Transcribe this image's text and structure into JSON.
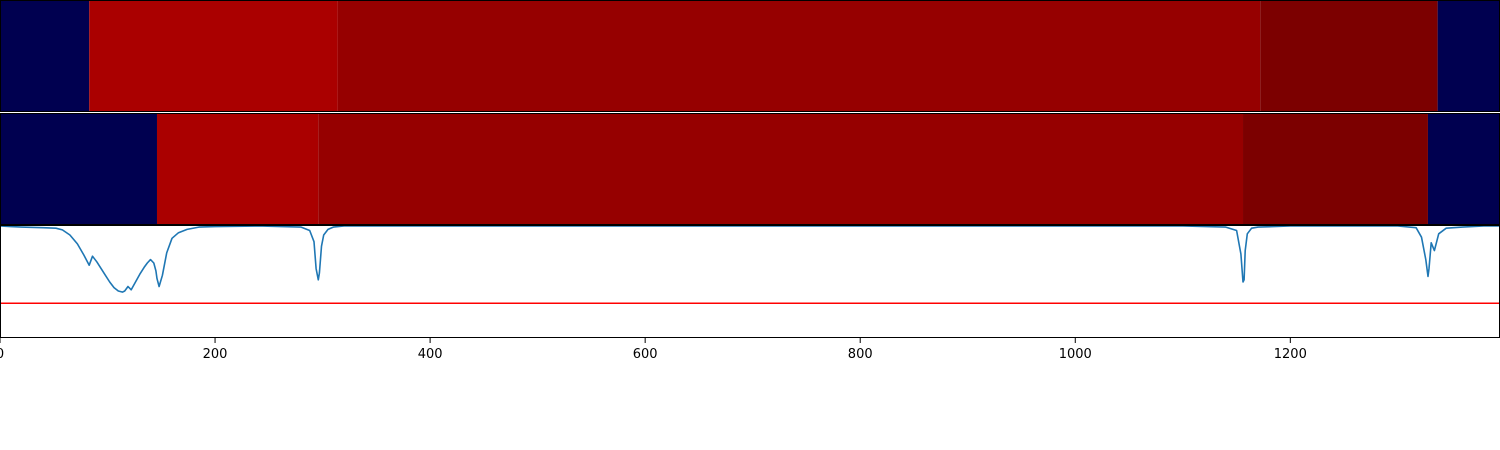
{
  "chart_data": {
    "type": "heatmap",
    "xlim": [
      0,
      1395
    ],
    "x_ticks": [
      0,
      200,
      400,
      600,
      800,
      1000,
      1200
    ],
    "x_tick_labels": [
      "0",
      "200",
      "400",
      "600",
      "800",
      "1000",
      "1200"
    ],
    "colors": {
      "navy": "#000050",
      "red_bright": "#aa0000",
      "red_mid": "#960000",
      "red_dark": "#7c0000",
      "line": "#1f77b4",
      "threshold": "#ff0000"
    },
    "rows": [
      {
        "segments": [
          {
            "start": 0,
            "end": 83,
            "color": "#000050"
          },
          {
            "start": 83,
            "end": 314,
            "color": "#aa0000"
          },
          {
            "start": 314,
            "end": 1172,
            "color": "#960000"
          },
          {
            "start": 1172,
            "end": 1337,
            "color": "#7c0000"
          },
          {
            "start": 1337,
            "end": 1395,
            "color": "#000050"
          }
        ]
      },
      {
        "segments": [
          {
            "start": 0,
            "end": 146,
            "color": "#000050"
          },
          {
            "start": 146,
            "end": 296,
            "color": "#aa0000"
          },
          {
            "start": 296,
            "end": 1156,
            "color": "#960000"
          },
          {
            "start": 1156,
            "end": 1328,
            "color": "#7c0000"
          },
          {
            "start": 1328,
            "end": 1395,
            "color": "#000050"
          }
        ]
      }
    ],
    "signal": {
      "ylim": [
        0,
        1
      ],
      "threshold": 0.31,
      "x": [
        0,
        10,
        20,
        40,
        52,
        58,
        65,
        72,
        78,
        83,
        86,
        90,
        94,
        98,
        102,
        106,
        110,
        114,
        116,
        119,
        122,
        126,
        130,
        134,
        137,
        140,
        143,
        145,
        146,
        148,
        151,
        155,
        160,
        166,
        174,
        185,
        200,
        240,
        280,
        288,
        292,
        294,
        296,
        297,
        299,
        301,
        305,
        310,
        320,
        340,
        700,
        1100,
        1140,
        1150,
        1154,
        1156,
        1157,
        1158,
        1160,
        1164,
        1170,
        1200,
        1300,
        1317,
        1322,
        1326,
        1328,
        1329,
        1331,
        1334,
        1338,
        1345,
        1360,
        1380,
        1395
      ],
      "y": [
        1.0,
        0.995,
        0.99,
        0.985,
        0.98,
        0.965,
        0.92,
        0.84,
        0.74,
        0.65,
        0.73,
        0.68,
        0.62,
        0.56,
        0.5,
        0.45,
        0.42,
        0.41,
        0.42,
        0.46,
        0.43,
        0.5,
        0.57,
        0.63,
        0.67,
        0.7,
        0.67,
        0.6,
        0.53,
        0.46,
        0.56,
        0.76,
        0.89,
        0.94,
        0.97,
        0.99,
        0.995,
        1.0,
        0.99,
        0.96,
        0.86,
        0.62,
        0.52,
        0.58,
        0.82,
        0.92,
        0.97,
        0.99,
        1.0,
        1.0,
        1.0,
        1.0,
        0.99,
        0.96,
        0.75,
        0.5,
        0.52,
        0.78,
        0.93,
        0.98,
        0.99,
        1.0,
        1.0,
        0.985,
        0.9,
        0.7,
        0.55,
        0.62,
        0.85,
        0.78,
        0.93,
        0.98,
        0.99,
        1.0,
        1.0
      ]
    }
  }
}
